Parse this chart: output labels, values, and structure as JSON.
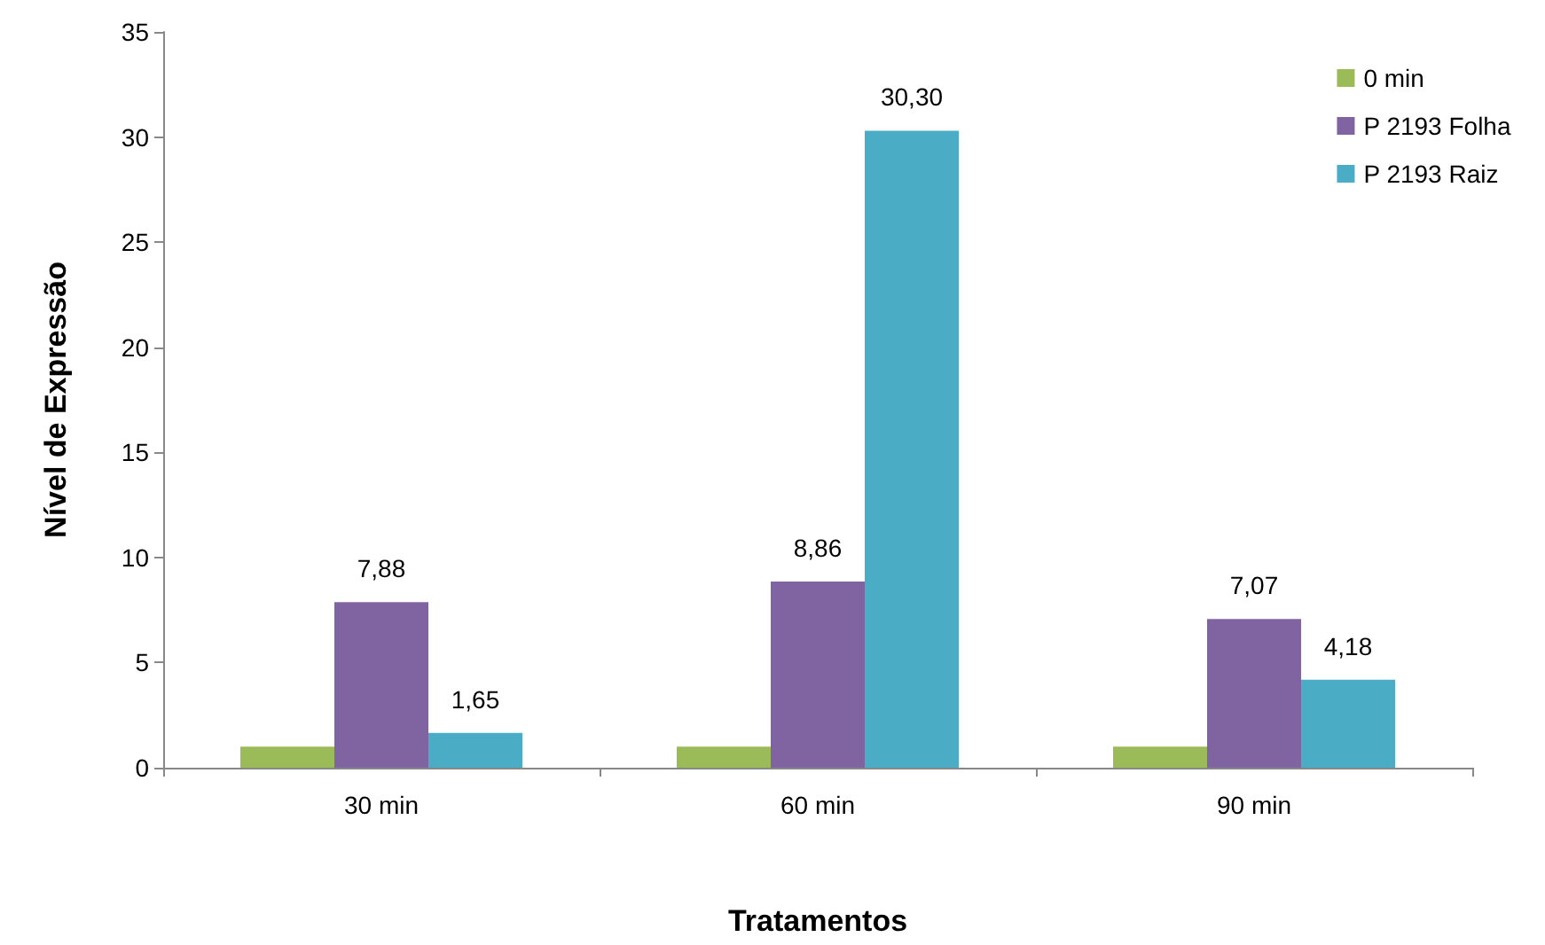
{
  "chart_data": {
    "type": "bar",
    "xlabel": "Tratamentos",
    "ylabel": "Nível de Expressão",
    "categories": [
      "30 min",
      "60 min",
      "90 min"
    ],
    "series": [
      {
        "name": "0 min",
        "color": "#9bbb59",
        "values": [
          1,
          1,
          1
        ]
      },
      {
        "name": "P 2193 Folha",
        "color": "#8064a2",
        "values": [
          7.88,
          8.86,
          7.07
        ],
        "value_labels": [
          "7,88",
          "8,86",
          "7,07"
        ]
      },
      {
        "name": "P 2193 Raiz",
        "color": "#4bacc6",
        "values": [
          1.65,
          30.3,
          4.18
        ],
        "value_labels": [
          "1,65",
          "30,30",
          "4,18"
        ]
      }
    ],
    "ylim": [
      0,
      35
    ],
    "yticks": [
      0,
      5,
      10,
      15,
      20,
      25,
      30,
      35
    ],
    "grid": false,
    "legend": "top right"
  }
}
